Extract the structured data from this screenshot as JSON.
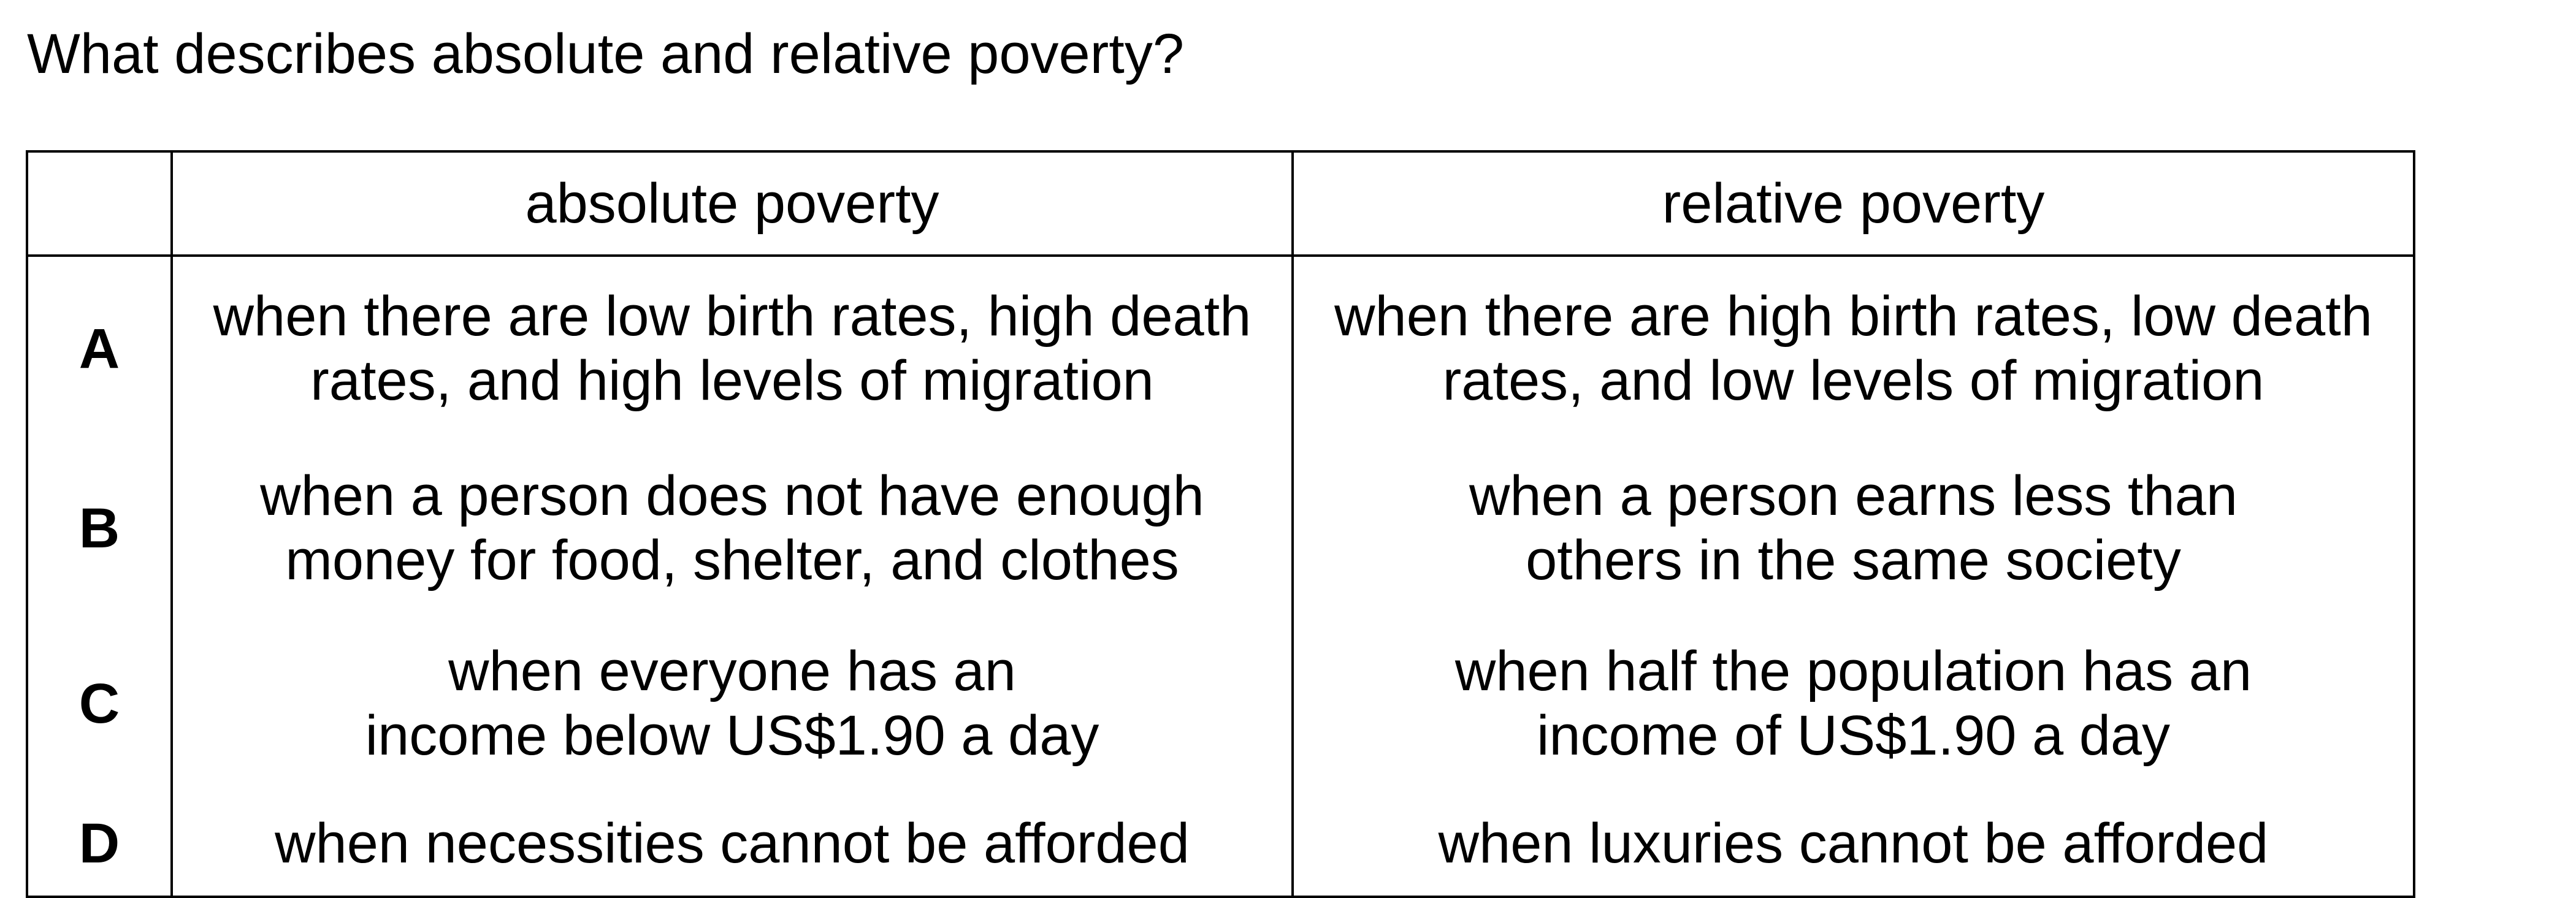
{
  "question": "What describes absolute and relative poverty?",
  "headers": {
    "letter": "",
    "absolute": "absolute poverty",
    "relative": "relative poverty"
  },
  "options": [
    {
      "letter": "A",
      "absolute": [
        "when there are low birth rates, high death",
        "rates, and high levels of migration"
      ],
      "relative": [
        "when there are high birth rates, low death",
        "rates, and low levels of migration"
      ]
    },
    {
      "letter": "B",
      "absolute": [
        "when a person does not have enough",
        "money for food, shelter, and clothes"
      ],
      "relative": [
        "when a person earns less than",
        "others in the same society"
      ]
    },
    {
      "letter": "C",
      "absolute": [
        "when everyone has an",
        "income below US$1.90 a day"
      ],
      "relative": [
        "when half the population has an",
        "income of US$1.90 a day"
      ]
    },
    {
      "letter": "D",
      "absolute": [
        "when necessities cannot be afforded"
      ],
      "relative": [
        "when luxuries cannot be afforded"
      ]
    }
  ]
}
